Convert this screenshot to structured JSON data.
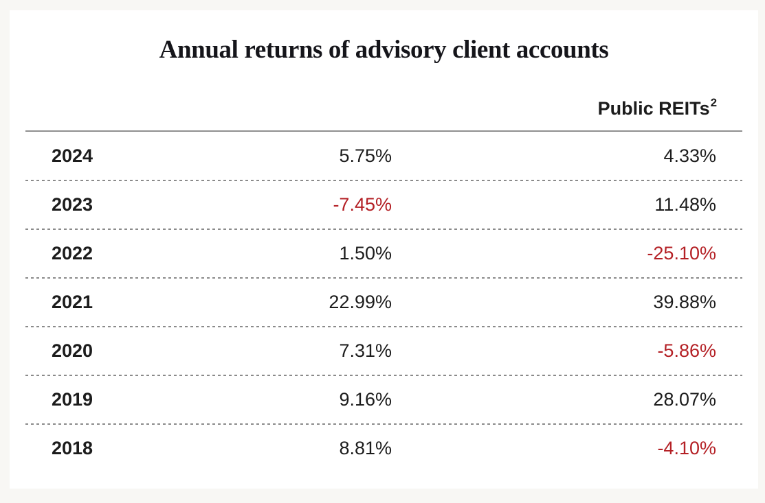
{
  "title": "Annual returns of advisory client accounts",
  "table": {
    "header": {
      "public_reits_label": "Public REITs",
      "public_reits_footnote": "2"
    },
    "rows": [
      {
        "year": "2024",
        "advisory_return": "5.75%",
        "public_reits_return": "4.33%"
      },
      {
        "year": "2023",
        "advisory_return": "-7.45%",
        "public_reits_return": "11.48%"
      },
      {
        "year": "2022",
        "advisory_return": "1.50%",
        "public_reits_return": "-25.10%"
      },
      {
        "year": "2021",
        "advisory_return": "22.99%",
        "public_reits_return": "39.88%"
      },
      {
        "year": "2020",
        "advisory_return": "7.31%",
        "public_reits_return": "-5.86%"
      },
      {
        "year": "2019",
        "advisory_return": "9.16%",
        "public_reits_return": "28.07%"
      },
      {
        "year": "2018",
        "advisory_return": "8.81%",
        "public_reits_return": "-4.10%"
      }
    ]
  },
  "colors": {
    "page_background": "#f8f7f4",
    "card_background": "#ffffff",
    "text": "#1c1c1c",
    "negative_value": "#b42025",
    "rule_solid": "#8f8f8f",
    "rule_dashed": "#8a8a8a"
  },
  "chart_data": {
    "type": "table",
    "title": "Annual returns of advisory client accounts",
    "categories": [
      "2024",
      "2023",
      "2022",
      "2021",
      "2020",
      "2019",
      "2018"
    ],
    "series": [
      {
        "name": "",
        "values": [
          5.75,
          -7.45,
          1.5,
          22.99,
          7.31,
          9.16,
          8.81
        ]
      },
      {
        "name": "Public REITs",
        "values": [
          4.33,
          11.48,
          -25.1,
          39.88,
          -5.86,
          28.07,
          -4.1
        ]
      }
    ],
    "value_unit": "%",
    "footnote_marker_on_public_reits": "2",
    "negative_values_shown_in_red": true,
    "layout": {
      "year_column_align": "left",
      "value_columns_align": "right",
      "header_rule": "solid",
      "row_separators": "dashed"
    }
  }
}
